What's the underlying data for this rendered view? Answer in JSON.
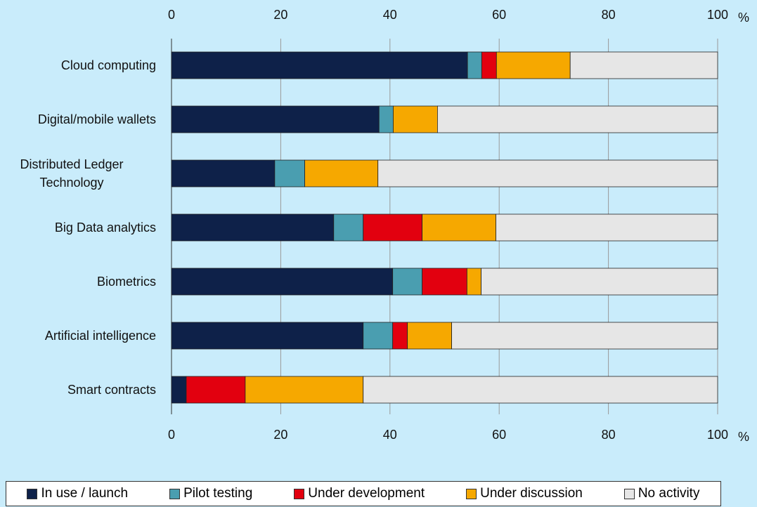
{
  "chart_data": {
    "type": "stacked-barh",
    "categories": [
      "Cloud computing",
      "Digital/mobile wallets",
      "Distributed Ledger Technology",
      "Big Data analytics",
      "Biometrics",
      "Artificial intelligence",
      "Smart contracts"
    ],
    "series": [
      {
        "name": "In use / launch",
        "color": "#0e2149",
        "values": [
          54.2,
          38.0,
          18.9,
          29.7,
          40.5,
          35.1,
          2.7
        ]
      },
      {
        "name": "Pilot testing",
        "color": "#4a9eb0",
        "values": [
          2.6,
          2.6,
          5.5,
          5.4,
          5.4,
          5.4,
          0
        ]
      },
      {
        "name": "Under development",
        "color": "#e2000f",
        "values": [
          2.7,
          0,
          0,
          10.8,
          8.2,
          2.7,
          10.8
        ]
      },
      {
        "name": "Under discussion",
        "color": "#f6a800",
        "values": [
          13.5,
          8.1,
          13.4,
          13.5,
          2.6,
          8.1,
          21.6
        ]
      },
      {
        "name": "No activity",
        "color": "#e6e6e6",
        "values": [
          27.0,
          51.3,
          62.2,
          40.6,
          43.3,
          48.7,
          64.9
        ]
      }
    ],
    "xlim": [
      0,
      100
    ],
    "xticks": [
      0,
      20,
      40,
      60,
      80,
      100
    ],
    "x_unit": "%",
    "grid": true
  }
}
